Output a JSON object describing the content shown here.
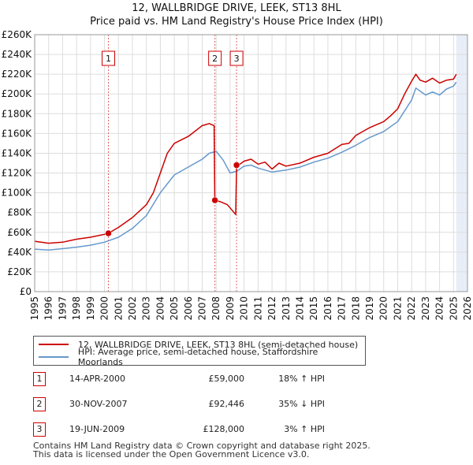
{
  "title": {
    "line1": "12, WALLBRIDGE DRIVE, LEEK, ST13 8HL",
    "line2": "Price paid vs. HM Land Registry's House Price Index (HPI)"
  },
  "legend": {
    "property_label": "12, WALLBRIDGE DRIVE, LEEK, ST13 8HL (semi-detached house)",
    "hpi_label": "HPI: Average price, semi-detached house, Staffordshire Moorlands"
  },
  "transactions": [
    {
      "num": "1",
      "date": "14-APR-2000",
      "price": "£59,000",
      "hpi": "18% ↑ HPI"
    },
    {
      "num": "2",
      "date": "30-NOV-2007",
      "price": "£92,446",
      "hpi": "35% ↓ HPI"
    },
    {
      "num": "3",
      "date": "19-JUN-2009",
      "price": "£128,000",
      "hpi": "3% ↑ HPI"
    }
  ],
  "footer": {
    "line1": "Contains HM Land Registry data © Crown copyright and database right 2025.",
    "line2": "This data is licensed under the Open Government Licence v3.0."
  },
  "colors": {
    "property": "#cc0000",
    "hpi": "#6699cc",
    "grid": "#dddddd",
    "shade": "#e8eef7",
    "marker_line": "#e06666"
  },
  "chart_data": {
    "type": "line",
    "title": "12, WALLBRIDGE DRIVE, LEEK, ST13 8HL",
    "subtitle": "Price paid vs. HM Land Registry's House Price Index (HPI)",
    "xlabel": "",
    "ylabel": "",
    "xlim": [
      1995,
      2026
    ],
    "ylim": [
      0,
      260000
    ],
    "x_ticks": [
      1995,
      1996,
      1997,
      1998,
      1999,
      2000,
      2001,
      2002,
      2003,
      2004,
      2005,
      2006,
      2007,
      2008,
      2009,
      2010,
      2011,
      2012,
      2013,
      2014,
      2015,
      2016,
      2017,
      2018,
      2019,
      2020,
      2021,
      2022,
      2023,
      2024,
      2025,
      2026
    ],
    "y_ticks": [
      {
        "value": 0,
        "label": "£0"
      },
      {
        "value": 20000,
        "label": "£20K"
      },
      {
        "value": 40000,
        "label": "£40K"
      },
      {
        "value": 60000,
        "label": "£60K"
      },
      {
        "value": 80000,
        "label": "£80K"
      },
      {
        "value": 100000,
        "label": "£100K"
      },
      {
        "value": 120000,
        "label": "£120K"
      },
      {
        "value": 140000,
        "label": "£140K"
      },
      {
        "value": 160000,
        "label": "£160K"
      },
      {
        "value": 180000,
        "label": "£180K"
      },
      {
        "value": 200000,
        "label": "£200K"
      },
      {
        "value": 220000,
        "label": "£220K"
      },
      {
        "value": 240000,
        "label": "£240K"
      },
      {
        "value": 260000,
        "label": "£260K"
      }
    ],
    "grid": true,
    "future_shade_from": 2025.2,
    "series": [
      {
        "name": "12, WALLBRIDGE DRIVE, LEEK, ST13 8HL (semi-detached house)",
        "x": [
          1995.0,
          1996.0,
          1997.0,
          1998.0,
          1999.0,
          2000.0,
          2000.28,
          2001.0,
          2002.0,
          2003.0,
          2003.5,
          2004.0,
          2004.5,
          2005.0,
          2006.0,
          2007.0,
          2007.5,
          2007.85,
          2007.9,
          2008.3,
          2008.8,
          2009.4,
          2009.46,
          2009.5,
          2010.0,
          2010.5,
          2011.0,
          2011.5,
          2012.0,
          2012.5,
          2013.0,
          2014.0,
          2015.0,
          2016.0,
          2017.0,
          2017.5,
          2018.0,
          2019.0,
          2020.0,
          2020.5,
          2021.0,
          2021.5,
          2022.0,
          2022.3,
          2022.6,
          2023.0,
          2023.5,
          2024.0,
          2024.5,
          2025.0,
          2025.2
        ],
        "values": [
          51000,
          49000,
          50000,
          53000,
          55000,
          58000,
          59000,
          65000,
          75000,
          88000,
          100000,
          120000,
          140000,
          150000,
          157000,
          168000,
          170000,
          168000,
          92446,
          91000,
          88000,
          78000,
          128000,
          127000,
          132000,
          134000,
          129000,
          131000,
          124000,
          130000,
          127000,
          130000,
          136000,
          140000,
          149000,
          150000,
          158000,
          166000,
          172000,
          178000,
          185000,
          200000,
          213000,
          220000,
          214000,
          212000,
          216000,
          211000,
          214000,
          215000,
          220000
        ]
      },
      {
        "name": "HPI: Average price, semi-detached house, Staffordshire Moorlands",
        "x": [
          1995.0,
          1996.0,
          1997.0,
          1998.0,
          1999.0,
          2000.0,
          2001.0,
          2002.0,
          2003.0,
          2004.0,
          2005.0,
          2006.0,
          2007.0,
          2007.5,
          2008.0,
          2008.5,
          2009.0,
          2009.5,
          2010.0,
          2010.5,
          2011.0,
          2012.0,
          2013.0,
          2014.0,
          2015.0,
          2016.0,
          2017.0,
          2018.0,
          2019.0,
          2020.0,
          2021.0,
          2022.0,
          2022.3,
          2022.6,
          2023.0,
          2023.5,
          2024.0,
          2024.5,
          2025.0,
          2025.2
        ],
        "values": [
          43000,
          42000,
          43500,
          45000,
          47000,
          50000,
          55000,
          64000,
          77000,
          100000,
          118000,
          126000,
          134000,
          140000,
          142000,
          133000,
          120000,
          122000,
          127000,
          128000,
          125000,
          121000,
          123000,
          126000,
          131000,
          135000,
          141000,
          148000,
          156000,
          162000,
          172000,
          194000,
          206000,
          203000,
          199000,
          202000,
          199000,
          205000,
          208000,
          212000
        ]
      }
    ],
    "sales": [
      {
        "label": "1",
        "x": 2000.28,
        "value": 59000
      },
      {
        "label": "2",
        "x": 2007.91,
        "value": 92446
      },
      {
        "label": "3",
        "x": 2009.46,
        "value": 128000
      }
    ]
  }
}
